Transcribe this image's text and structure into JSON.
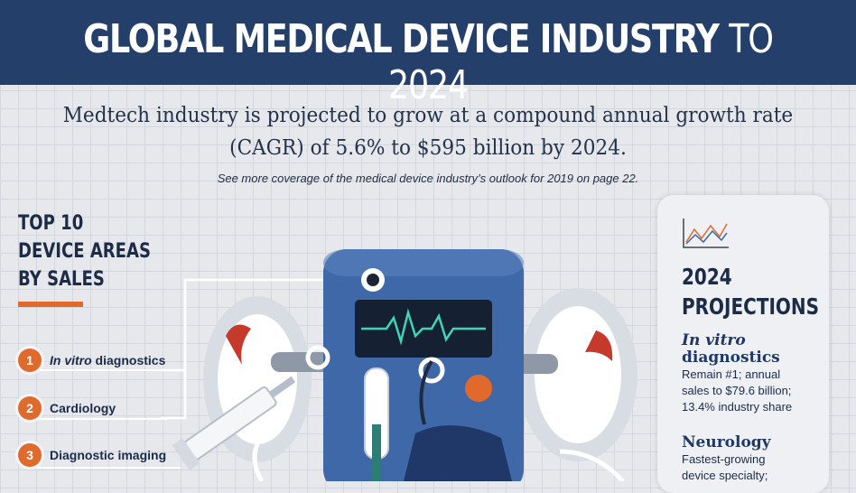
{
  "banner": {
    "title_bold": "GLOBAL MEDICAL DEVICE INDUSTRY",
    "title_light": "TO 2024"
  },
  "headline": {
    "line1": "Medtech industry is projected to grow at a compound annual growth rate",
    "line2": "(CAGR) of 5.6% to $595 billion by 2024."
  },
  "subnote": "See more coverage of the medical device industry’s outlook for 2019 on page 22.",
  "top10": {
    "heading": [
      "TOP 10",
      "DEVICE AREAS",
      "BY SALES"
    ],
    "items": [
      {
        "number": "1",
        "label_italic": "In vitro",
        "label": " diagnostics"
      },
      {
        "number": "2",
        "label_italic": "",
        "label": "Cardiology"
      },
      {
        "number": "3",
        "label_italic": "",
        "label": "Diagnostic imaging"
      }
    ]
  },
  "projections": {
    "heading": [
      "2024",
      "PROJECTIONS"
    ],
    "entries": [
      {
        "title": [
          "In vitro",
          "diagnostics"
        ],
        "text": [
          "Remain #1; annual",
          "sales to $79.6 billion;",
          "13.4% industry share"
        ]
      },
      {
        "title": [
          "Neurology"
        ],
        "text": [
          "Fastest-growing",
          "device specialty;"
        ]
      }
    ]
  },
  "colors": {
    "banner": "#233f6a",
    "accent": "#e06a2b",
    "device_body": "#3f68a8",
    "screen_wave": "#3fd6b4"
  },
  "icons": [
    "line-chart-icon",
    "medical-device-illustration"
  ]
}
